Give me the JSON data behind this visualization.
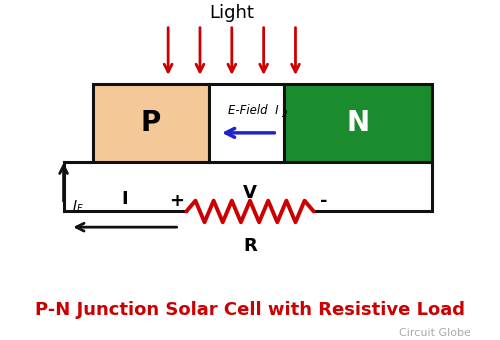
{
  "bg_color": "#ffffff",
  "title": "P-N Junction Solar Cell with Resistive Load",
  "title_color": "#cc0000",
  "title_fontsize": 13,
  "credit": "Circuit Globe",
  "credit_color": "#aaaaaa",
  "credit_fontsize": 8,
  "light_text": "Light",
  "light_color": "#cc0000",
  "p_color": "#f5c89a",
  "n_color": "#1a8c2e",
  "junction_color": "#ffffff",
  "p_label": "P",
  "n_label": "N",
  "efield_label": "E-Field  I",
  "resistor_color": "#cc0000",
  "circuit_color": "#111111",
  "arrow_blue": "#2222cc",
  "arrow_red": "#cc0000",
  "arrow_black": "#111111"
}
